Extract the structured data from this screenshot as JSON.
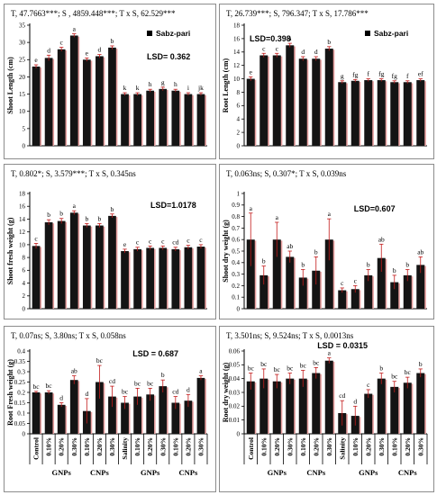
{
  "chart_data": [
    {
      "type": "bar",
      "stats": "T, 47.7663***; S , 4859.448***; T x S, 62.529***",
      "lsd": "LSD= 0.362",
      "legend": "Sabz-pari",
      "ylabel": "Shoot Length (cm)",
      "ylim": [
        0,
        35
      ],
      "yticks": [
        0,
        5,
        10,
        15,
        20,
        25,
        30,
        35
      ],
      "values": [
        23,
        25.5,
        28,
        32,
        25,
        26,
        28.5,
        15,
        15,
        16,
        16.5,
        16,
        15,
        15
      ],
      "errors": [
        0.5,
        0.8,
        0.6,
        0.5,
        0.5,
        0.5,
        0.5,
        0.4,
        0.4,
        0.4,
        0.5,
        0.4,
        0.4,
        0.4
      ],
      "letters": [
        "e",
        "d",
        "c",
        "a",
        "e",
        "d",
        "b",
        "k",
        "k",
        "h",
        "g",
        "h",
        "i",
        "jk"
      ]
    },
    {
      "type": "bar",
      "stats": "T, 26.739***; S, 796.347; T x S, 17.786***",
      "lsd": "LSD=0.398",
      "legend": "Sabz-pari",
      "ylabel": "Root Length (cm)",
      "ylim": [
        0,
        18
      ],
      "yticks": [
        0,
        2,
        4,
        6,
        8,
        10,
        12,
        14,
        16,
        18
      ],
      "values": [
        10,
        13.5,
        13.5,
        15,
        13,
        13,
        14.5,
        9.5,
        9.7,
        9.8,
        9.8,
        9.5,
        9.5,
        9.8
      ],
      "errors": [
        0.3,
        0.3,
        0.3,
        0.3,
        0.3,
        0.3,
        0.3,
        0.2,
        0.2,
        0.2,
        0.2,
        0.2,
        0.2,
        0.2
      ],
      "letters": [
        "e",
        "c",
        "c",
        "a",
        "d",
        "d",
        "b",
        "g",
        "fg",
        "f",
        "fg",
        "fg",
        "f",
        "ef"
      ]
    },
    {
      "type": "bar",
      "stats": "T, 0.802*; S, 3.579***; T x S, 0.345ns",
      "lsd": "LSD=1.0178",
      "ylabel": "Shoot fresh weight (g)",
      "ylim": [
        0,
        18
      ],
      "yticks": [
        0,
        2,
        4,
        6,
        8,
        10,
        12,
        14,
        16,
        18
      ],
      "values": [
        9.8,
        13.5,
        13.7,
        15,
        13,
        13,
        14.5,
        9,
        9.3,
        9.5,
        9.5,
        9.3,
        9.6,
        9.7
      ],
      "errors": [
        0.4,
        0.4,
        0.4,
        0.3,
        0.3,
        0.3,
        0.3,
        0.3,
        0.3,
        0.3,
        0.3,
        0.3,
        0.3,
        0.3
      ],
      "letters": [
        "c",
        "b",
        "b",
        "a",
        "b",
        "b",
        "b",
        "e",
        "c",
        "c",
        "c",
        "cd",
        "c",
        "c"
      ]
    },
    {
      "type": "bar",
      "stats": "T, 0.063ns; S, 0.307*; T x S, 0.039ns",
      "lsd": "LSD=0.607",
      "ylabel": "Shoot dry weight (g)",
      "ylim": [
        0,
        1
      ],
      "yticks": [
        0,
        0.1,
        0.2,
        0.3,
        0.4,
        0.5,
        0.6,
        0.7,
        0.8,
        0.9,
        1
      ],
      "values": [
        0.6,
        0.29,
        0.6,
        0.45,
        0.27,
        0.33,
        0.6,
        0.16,
        0.17,
        0.29,
        0.44,
        0.23,
        0.29,
        0.38
      ],
      "errors": [
        0.23,
        0.08,
        0.15,
        0.05,
        0.07,
        0.12,
        0.18,
        0.02,
        0.03,
        0.05,
        0.12,
        0.06,
        0.05,
        0.07
      ],
      "letters": [
        "a",
        "b",
        "a",
        "ab",
        "b",
        "b",
        "a",
        "c",
        "c",
        "b",
        "ab",
        "b",
        "b",
        "ab"
      ]
    },
    {
      "type": "bar",
      "stats": "T, 0.07ns; S, 3.80ns; T x S, 0.058ns",
      "lsd": "LSD = 0.687",
      "ylabel": "Root Fresh weight (g)",
      "ylim": [
        0,
        0.4
      ],
      "yticks": [
        0,
        0.05,
        0.1,
        0.15,
        0.2,
        0.25,
        0.3,
        0.35,
        0.4
      ],
      "values": [
        0.2,
        0.2,
        0.14,
        0.26,
        0.11,
        0.25,
        0.18,
        0.15,
        0.18,
        0.19,
        0.23,
        0.15,
        0.16,
        0.27
      ],
      "errors": [
        0.005,
        0.008,
        0.01,
        0.02,
        0.06,
        0.08,
        0.05,
        0.03,
        0.04,
        0.03,
        0.03,
        0.03,
        0.03,
        0.01
      ],
      "letters": [
        "bc",
        "bc",
        "d",
        "ab",
        "d",
        "bc",
        "cd",
        "bc",
        "bc",
        "bc",
        "b",
        "cd",
        "d",
        "a"
      ]
    },
    {
      "type": "bar",
      "stats": "T, 3.501ns; S, 9.524ns; T x S, 0.0013ns",
      "lsd": "LSD = 0.0315",
      "ylabel": "Root dry weight (g)",
      "ylim": [
        0,
        0.06
      ],
      "yticks": [
        0,
        0.01,
        0.02,
        0.03,
        0.04,
        0.05,
        0.06
      ],
      "values": [
        0.038,
        0.04,
        0.038,
        0.04,
        0.04,
        0.044,
        0.053,
        0.015,
        0.013,
        0.029,
        0.04,
        0.034,
        0.037,
        0.044
      ],
      "errors": [
        0.006,
        0.007,
        0.005,
        0.004,
        0.006,
        0.004,
        0.002,
        0.009,
        0.007,
        0.003,
        0.004,
        0.004,
        0.004,
        0.003
      ],
      "letters": [
        "bc",
        "bc",
        "bc",
        "bc",
        "bc",
        "bc",
        "a",
        "cd",
        "d",
        "c",
        "b",
        "bc",
        "bc",
        "b"
      ]
    }
  ],
  "x_axis": {
    "categories": [
      "Control",
      "0.10%",
      "0.20%",
      "0.30%",
      "0.10%",
      "0.20%",
      "0.30%",
      "Salinity",
      "0.10%",
      "0.20%",
      "0.30%",
      "0.10%",
      "0.20%",
      "0.30%"
    ],
    "groups": [
      {
        "label": "GNPs",
        "from": 1,
        "to": 3
      },
      {
        "label": "CNPs",
        "from": 4,
        "to": 6
      },
      {
        "label": "GNPs",
        "from": 8,
        "to": 10
      },
      {
        "label": "CNPs",
        "from": 11,
        "to": 13
      }
    ]
  },
  "colors": {
    "bar": "#141414",
    "shadow": "#e8a0a0",
    "error": "#c21a1a"
  }
}
